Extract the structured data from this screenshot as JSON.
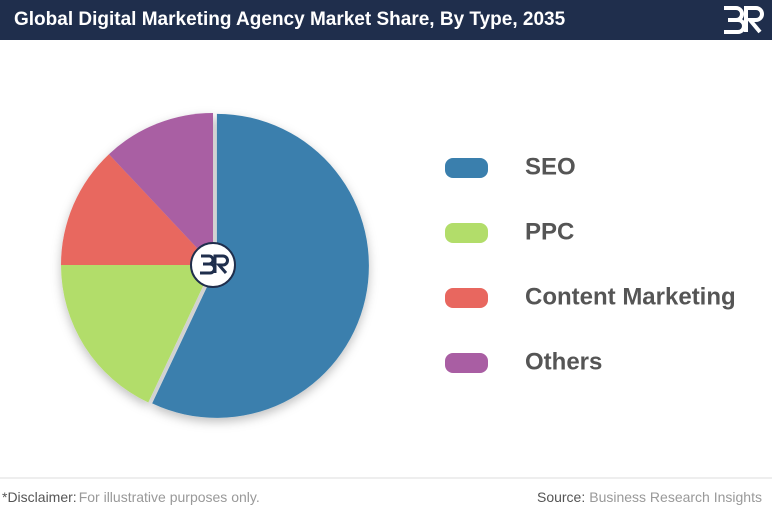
{
  "header": {
    "title": "Global Digital Marketing Agency Market Share, By Type, 2035"
  },
  "chart_data": {
    "type": "pie",
    "categories": [
      "SEO",
      "PPC",
      "Content Marketing",
      "Others"
    ],
    "values": [
      57,
      18,
      13,
      12
    ],
    "colors": [
      "#3a7fad",
      "#b2dd6a",
      "#e8675f",
      "#a95ea3"
    ]
  },
  "footer": {
    "disclaimer_label": "*Disclaimer:",
    "disclaimer_text": "For illustrative purposes only.",
    "source_label": "Source:",
    "source_text": "Business Research Insights"
  }
}
